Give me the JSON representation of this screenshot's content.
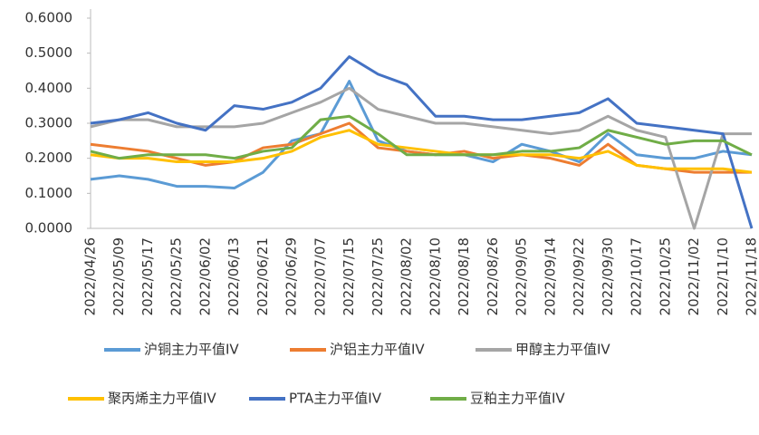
{
  "chart_data": {
    "type": "line",
    "categories": [
      "2022/04/26",
      "2022/05/09",
      "2022/05/17",
      "2022/05/25",
      "2022/06/02",
      "2022/06/13",
      "2022/06/21",
      "2022/06/29",
      "2022/07/07",
      "2022/07/15",
      "2022/07/25",
      "2022/08/02",
      "2022/08/10",
      "2022/08/18",
      "2022/08/26",
      "2022/09/05",
      "2022/09/14",
      "2022/09/22",
      "2022/09/30",
      "2022/10/17",
      "2022/10/25",
      "2022/11/02",
      "2022/11/10",
      "2022/11/18"
    ],
    "series": [
      {
        "name": "沪铜主力平值IV",
        "color": "#5b9bd5",
        "values": [
          0.14,
          0.15,
          0.14,
          0.12,
          0.12,
          0.115,
          0.16,
          0.25,
          0.27,
          0.42,
          0.25,
          0.22,
          0.21,
          0.21,
          0.19,
          0.24,
          0.22,
          0.19,
          0.27,
          0.21,
          0.2,
          0.2,
          0.22,
          0.21
        ]
      },
      {
        "name": "沪铝主力平值IV",
        "color": "#ed7d31",
        "values": [
          0.24,
          0.23,
          0.22,
          0.2,
          0.18,
          0.19,
          0.23,
          0.24,
          0.27,
          0.3,
          0.23,
          0.22,
          0.21,
          0.22,
          0.2,
          0.21,
          0.2,
          0.18,
          0.24,
          0.18,
          0.17,
          0.16,
          0.16,
          0.16
        ]
      },
      {
        "name": "甲醇主力平值IV",
        "color": "#a5a5a5",
        "values": [
          0.29,
          0.31,
          0.31,
          0.29,
          0.29,
          0.29,
          0.3,
          0.33,
          0.36,
          0.4,
          0.34,
          0.32,
          0.3,
          0.3,
          0.29,
          0.28,
          0.27,
          0.28,
          0.32,
          0.28,
          0.26,
          0.0,
          0.27,
          0.27
        ]
      },
      {
        "name": "聚丙烯主力平值IV",
        "color": "#ffc000",
        "values": [
          0.21,
          0.2,
          0.2,
          0.19,
          0.19,
          0.19,
          0.2,
          0.22,
          0.26,
          0.28,
          0.24,
          0.23,
          0.22,
          0.21,
          0.21,
          0.21,
          0.21,
          0.2,
          0.22,
          0.18,
          0.17,
          0.17,
          0.17,
          0.16
        ]
      },
      {
        "name": "PTA主力平值IV",
        "color": "#4472c4",
        "values": [
          0.3,
          0.31,
          0.33,
          0.3,
          0.28,
          0.35,
          0.34,
          0.36,
          0.4,
          0.49,
          0.44,
          0.41,
          0.32,
          0.32,
          0.31,
          0.31,
          0.32,
          0.33,
          0.37,
          0.3,
          0.29,
          0.28,
          0.27,
          0.0
        ]
      },
      {
        "name": "豆粕主力平值IV",
        "color": "#70ad47",
        "values": [
          0.22,
          0.2,
          0.21,
          0.21,
          0.21,
          0.2,
          0.22,
          0.23,
          0.31,
          0.32,
          0.27,
          0.21,
          0.21,
          0.21,
          0.21,
          0.22,
          0.22,
          0.23,
          0.28,
          0.26,
          0.24,
          0.25,
          0.25,
          0.21
        ]
      }
    ],
    "ylim": [
      0,
      0.6
    ],
    "yticks": [
      {
        "value": 0,
        "label": "0.0000"
      },
      {
        "value": 0.1,
        "label": "0.1000"
      },
      {
        "value": 0.2,
        "label": "0.2000"
      },
      {
        "value": 0.3,
        "label": "0.3000"
      },
      {
        "value": 0.4,
        "label": "0.4000"
      },
      {
        "value": 0.5,
        "label": "0.5000"
      },
      {
        "value": 0.6,
        "label": "0.6000"
      }
    ]
  }
}
